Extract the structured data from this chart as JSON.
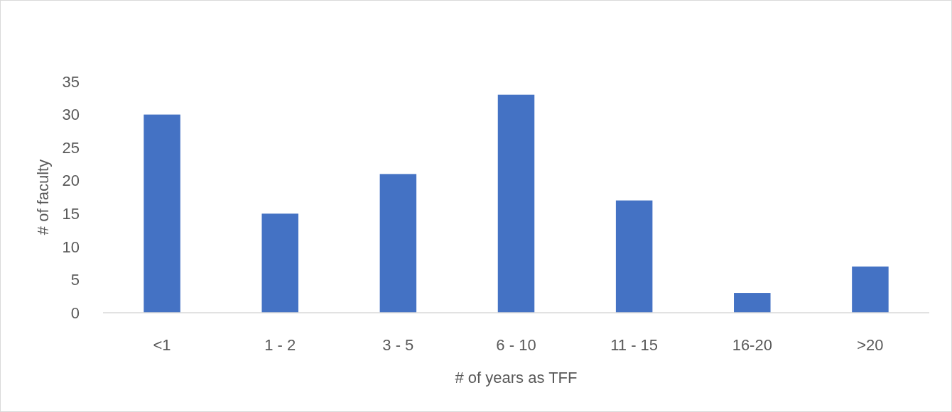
{
  "chart_data": {
    "type": "bar",
    "xlabel": "# of years as TFF",
    "ylabel": "# of faculty",
    "categories": [
      "<1",
      "1 - 2",
      "3 - 5",
      "6 - 10",
      "11 - 15",
      "16-20",
      ">20"
    ],
    "values": [
      30,
      15,
      21,
      33,
      17,
      3,
      7
    ],
    "color": "#4472c4",
    "ylim": [
      0,
      35
    ],
    "yticks": [
      0,
      5,
      10,
      15,
      20,
      25,
      30,
      35
    ],
    "grid": false
  }
}
